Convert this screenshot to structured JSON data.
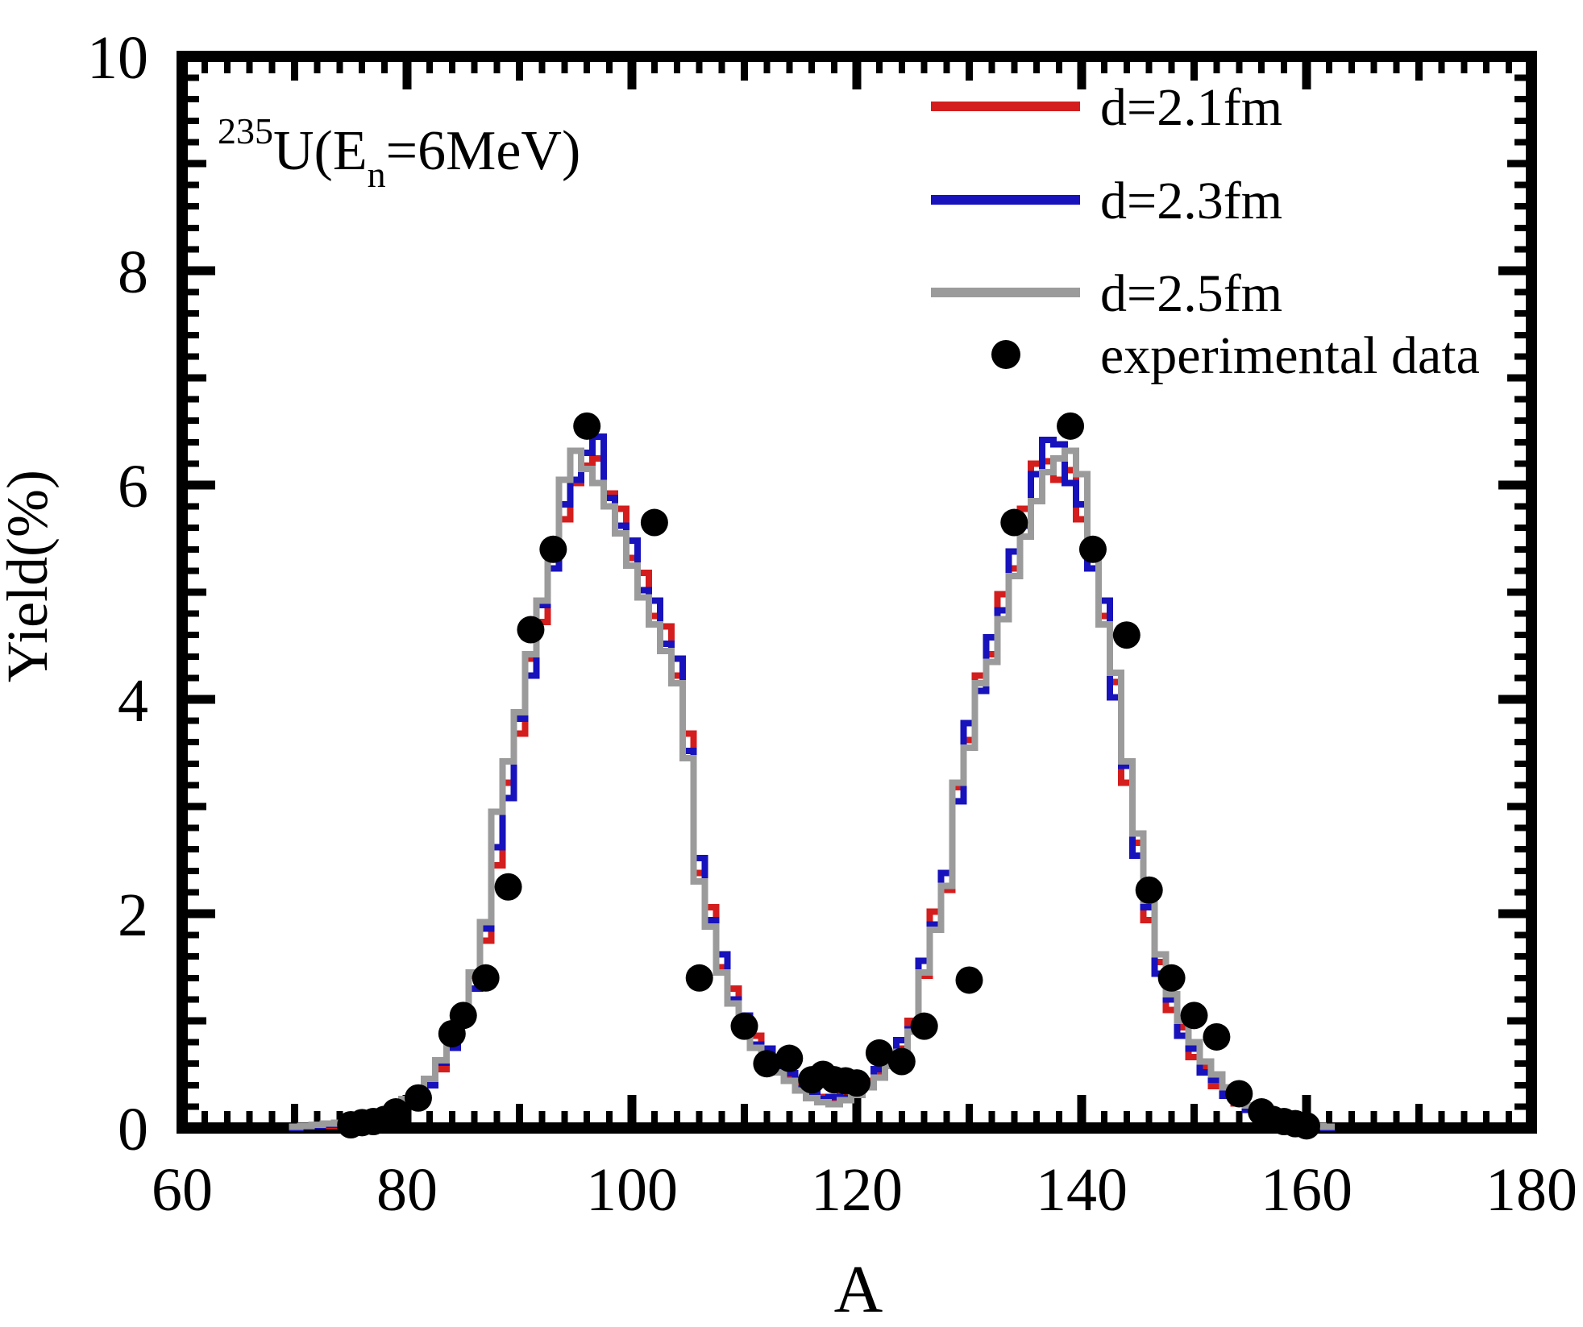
{
  "figure": {
    "title": {
      "super": "235",
      "base1": "U(E",
      "sub": "n",
      "base2": "=6MeV)"
    }
  },
  "axes": {
    "x": {
      "label": "A",
      "min": 60,
      "max": 180,
      "major_step": 20,
      "medium_step": 10,
      "minor_step": 2,
      "tick_labels": [
        "60",
        "80",
        "100",
        "120",
        "140",
        "160",
        "180"
      ]
    },
    "y": {
      "label": "Yield(%)",
      "min": 0,
      "max": 10,
      "major_step": 2,
      "medium_step": 1,
      "minor_step": 0.2,
      "tick_labels": [
        "0",
        "2",
        "4",
        "6",
        "8",
        "10"
      ]
    }
  },
  "legend": {
    "entries": [
      {
        "id": "d2.1",
        "label": "d=2.1fm",
        "marker": "line",
        "color": "#d41d1d"
      },
      {
        "id": "d2.3",
        "label": "d=2.3fm",
        "marker": "line",
        "color": "#1712bb"
      },
      {
        "id": "d2.5",
        "label": "d=2.5fm",
        "marker": "line",
        "color": "#9b9b9b"
      },
      {
        "id": "exp",
        "label": "experimental data",
        "marker": "dot",
        "color": "#000000"
      }
    ]
  },
  "colors": {
    "frame": "#000000",
    "background": "#ffffff",
    "experimental": "#000000"
  },
  "chart_data": {
    "type": "step-histogram + scatter",
    "title": "235U(En=6MeV) fission fragment mass yield",
    "xlabel": "A",
    "ylabel": "Yield(%)",
    "xlim": [
      60,
      180
    ],
    "ylim": [
      0,
      10
    ],
    "grid": false,
    "legend_position": "top-right-inside",
    "bin_width": 1,
    "A_start": 70,
    "categories_A": [
      70,
      71,
      72,
      73,
      74,
      75,
      76,
      77,
      78,
      79,
      80,
      81,
      82,
      83,
      84,
      85,
      86,
      87,
      88,
      89,
      90,
      91,
      92,
      93,
      94,
      95,
      96,
      97,
      98,
      99,
      100,
      101,
      102,
      103,
      104,
      105,
      106,
      107,
      108,
      109,
      110,
      111,
      112,
      113,
      114,
      115,
      116,
      117,
      118,
      119,
      120,
      121,
      122,
      123,
      124,
      125,
      126,
      127,
      128,
      129,
      130,
      131,
      132,
      133,
      134,
      135,
      136,
      137,
      138,
      139,
      140,
      141,
      142,
      143,
      144,
      145,
      146,
      147,
      148,
      149,
      150,
      151,
      152,
      153,
      154,
      155,
      156,
      157,
      158,
      159,
      160,
      161,
      162
    ],
    "series": [
      {
        "id": "d2.1",
        "name": "d=2.1fm",
        "color": "#d41d1d",
        "values": [
          0.0,
          0.01,
          0.02,
          0.02,
          0.04,
          0.05,
          0.08,
          0.09,
          0.14,
          0.17,
          0.25,
          0.3,
          0.45,
          0.55,
          0.82,
          0.98,
          1.42,
          1.75,
          2.45,
          3.22,
          3.68,
          4.38,
          4.72,
          5.38,
          5.68,
          6.02,
          6.18,
          6.25,
          5.92,
          5.78,
          5.32,
          5.18,
          4.78,
          4.68,
          4.22,
          3.68,
          2.38,
          2.06,
          1.5,
          1.3,
          0.96,
          0.86,
          0.66,
          0.61,
          0.45,
          0.41,
          0.3,
          0.29,
          0.26,
          0.31,
          0.33,
          0.44,
          0.49,
          0.66,
          0.74,
          1.0,
          1.42,
          2.02,
          2.22,
          3.18,
          3.62,
          4.22,
          4.42,
          4.98,
          5.22,
          5.78,
          6.2,
          6.22,
          6.05,
          6.14,
          5.68,
          5.36,
          4.78,
          4.16,
          3.22,
          2.66,
          1.94,
          1.55,
          1.1,
          0.94,
          0.66,
          0.58,
          0.39,
          0.34,
          0.23,
          0.19,
          0.11,
          0.08,
          0.05,
          0.03,
          0.02,
          0.01,
          0.01
        ]
      },
      {
        "id": "d2.3",
        "name": "d=2.3fm",
        "color": "#1712bb",
        "values": [
          0.0,
          0.01,
          0.02,
          0.03,
          0.04,
          0.06,
          0.07,
          0.11,
          0.12,
          0.19,
          0.23,
          0.34,
          0.4,
          0.61,
          0.75,
          1.06,
          1.3,
          1.86,
          2.62,
          3.08,
          3.82,
          4.22,
          4.88,
          5.22,
          5.82,
          6.05,
          6.3,
          6.45,
          5.88,
          5.62,
          5.48,
          5.02,
          4.92,
          4.52,
          4.38,
          3.52,
          2.52,
          1.94,
          1.62,
          1.2,
          1.05,
          0.78,
          0.74,
          0.55,
          0.51,
          0.37,
          0.34,
          0.27,
          0.29,
          0.28,
          0.37,
          0.4,
          0.55,
          0.6,
          0.82,
          0.92,
          1.56,
          1.9,
          2.38,
          3.05,
          3.78,
          4.08,
          4.58,
          4.83,
          5.38,
          5.62,
          6.1,
          6.42,
          6.38,
          6.02,
          5.82,
          5.22,
          4.92,
          4.02,
          3.38,
          2.54,
          2.06,
          1.44,
          1.2,
          0.86,
          0.74,
          0.52,
          0.45,
          0.3,
          0.27,
          0.17,
          0.13,
          0.07,
          0.05,
          0.03,
          0.02,
          0.01,
          0.0
        ]
      },
      {
        "id": "d2.5",
        "name": "d=2.5fm",
        "color": "#9b9b9b",
        "values": [
          0.01,
          0.02,
          0.03,
          0.04,
          0.05,
          0.07,
          0.09,
          0.12,
          0.15,
          0.2,
          0.27,
          0.35,
          0.46,
          0.63,
          0.85,
          1.1,
          1.45,
          1.92,
          2.95,
          3.42,
          3.88,
          4.42,
          4.92,
          5.42,
          6.05,
          6.32,
          6.15,
          6.02,
          5.8,
          5.55,
          5.25,
          4.95,
          4.7,
          4.45,
          4.15,
          3.45,
          2.3,
          1.88,
          1.45,
          1.16,
          0.92,
          0.75,
          0.63,
          0.52,
          0.44,
          0.35,
          0.28,
          0.24,
          0.22,
          0.26,
          0.31,
          0.38,
          0.47,
          0.58,
          0.71,
          0.9,
          1.45,
          1.85,
          2.26,
          3.22,
          3.55,
          4.15,
          4.35,
          4.75,
          5.15,
          5.52,
          5.85,
          6.12,
          6.25,
          6.32,
          6.1,
          5.45,
          4.7,
          4.25,
          3.42,
          2.75,
          2.12,
          1.62,
          1.25,
          1.0,
          0.8,
          0.62,
          0.5,
          0.38,
          0.29,
          0.21,
          0.15,
          0.1,
          0.07,
          0.05,
          0.03,
          0.02,
          0.01
        ]
      }
    ],
    "experimental": {
      "name": "experimental data",
      "A": [
        75,
        76,
        77,
        78,
        79,
        81,
        84,
        85,
        87,
        89,
        91,
        93,
        96,
        102,
        106,
        110,
        112,
        114,
        116,
        117,
        118,
        119,
        120,
        122,
        124,
        126,
        130,
        134,
        139,
        141,
        144,
        146,
        148,
        150,
        152,
        154,
        156,
        157,
        158,
        159,
        160
      ],
      "yield": [
        0.03,
        0.05,
        0.06,
        0.08,
        0.15,
        0.28,
        0.88,
        1.05,
        1.4,
        2.25,
        4.65,
        5.4,
        6.55,
        5.65,
        1.4,
        0.95,
        0.6,
        0.65,
        0.45,
        0.5,
        0.45,
        0.44,
        0.42,
        0.7,
        0.62,
        0.95,
        1.38,
        5.65,
        6.55,
        5.4,
        4.6,
        2.22,
        1.4,
        1.05,
        0.85,
        0.32,
        0.15,
        0.08,
        0.06,
        0.04,
        0.02
      ]
    }
  }
}
